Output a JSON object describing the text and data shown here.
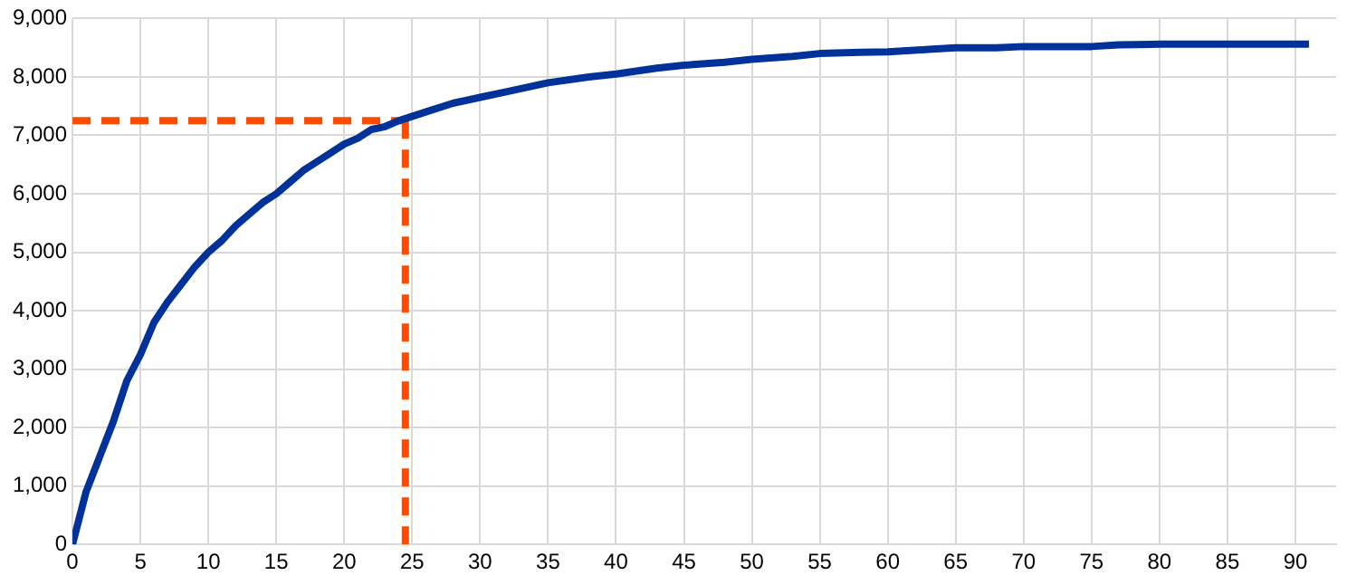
{
  "chart_data": {
    "type": "line",
    "xlim": [
      0,
      93
    ],
    "xticks": [
      0,
      5,
      10,
      15,
      20,
      25,
      30,
      35,
      40,
      45,
      50,
      55,
      60,
      65,
      70,
      75,
      80,
      85,
      90
    ],
    "ylim": [
      0,
      9000
    ],
    "yticks": [
      {
        "value": 0,
        "label": "0"
      },
      {
        "value": 1000,
        "label": "1,000"
      },
      {
        "value": 2000,
        "label": "2,000"
      },
      {
        "value": 3000,
        "label": "3,000"
      },
      {
        "value": 4000,
        "label": "4,000"
      },
      {
        "value": 5000,
        "label": "5,000"
      },
      {
        "value": 6000,
        "label": "6,000"
      },
      {
        "value": 7000,
        "label": "7,000"
      },
      {
        "value": 8000,
        "label": "8,000"
      },
      {
        "value": 9000,
        "label": "9,000"
      }
    ],
    "grid": true,
    "legend": false,
    "marker": "none",
    "series": [
      {
        "color": "#003299",
        "line_style": "solid",
        "x": [
          0,
          1,
          2,
          3,
          4,
          5,
          6,
          7,
          8,
          9,
          10,
          11,
          12,
          13,
          14,
          15,
          16,
          17,
          18,
          19,
          20,
          21,
          22,
          23,
          24,
          26,
          28,
          30,
          32,
          35,
          38,
          40,
          43,
          45,
          48,
          50,
          53,
          55,
          58,
          60,
          63,
          65,
          68,
          70,
          75,
          77,
          80,
          85,
          91
        ],
        "values": [
          0,
          900,
          1500,
          2100,
          2800,
          3250,
          3800,
          4150,
          4450,
          4750,
          5000,
          5200,
          5450,
          5650,
          5850,
          6000,
          6200,
          6400,
          6550,
          6700,
          6850,
          6950,
          7100,
          7150,
          7250,
          7400,
          7550,
          7650,
          7750,
          7900,
          8000,
          8050,
          8150,
          8200,
          8250,
          8300,
          8350,
          8400,
          8420,
          8430,
          8470,
          8500,
          8500,
          8520,
          8520,
          8550,
          8560,
          8560,
          8560
        ]
      },
      {
        "color": "#ff4b00",
        "line_style": "dashed",
        "x": [
          0,
          24.5
        ],
        "values": [
          7250,
          7250
        ]
      },
      {
        "color": "#ff4b00",
        "line_style": "dashed",
        "x": [
          24.5,
          24.5
        ],
        "values": [
          0,
          7250
        ]
      }
    ]
  }
}
